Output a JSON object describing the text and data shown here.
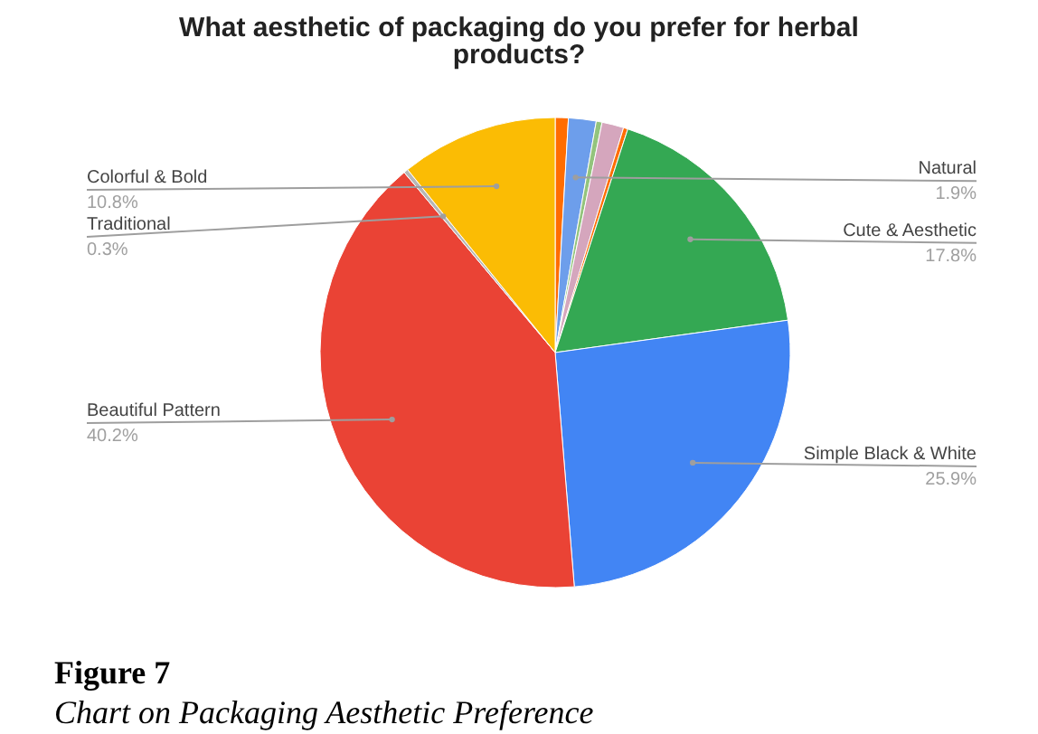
{
  "chart_data": {
    "type": "pie",
    "title": [
      "What aesthetic of packaging do you prefer for herbal",
      "products?"
    ],
    "categories": [
      null,
      "Natural",
      null,
      null,
      null,
      "Cute & Aesthetic",
      "Simple Black & White",
      "Beautiful Pattern",
      "Traditional",
      "Colorful & Bold"
    ],
    "values": [
      0.9,
      1.9,
      0.4,
      1.5,
      0.3,
      17.8,
      25.9,
      40.2,
      0.3,
      10.8
    ],
    "value_labels": [
      null,
      "1.9%",
      null,
      null,
      null,
      "17.8%",
      "25.9%",
      "40.2%",
      "0.3%",
      "10.8%"
    ],
    "colors": [
      "#ff6d01",
      "#6d9eeb",
      "#93c47d",
      "#d5a6bd",
      "#ff6d01",
      "#34a853",
      "#4285f4",
      "#ea4335",
      "#b7b7b7",
      "#fbbc04"
    ],
    "annotations": [
      "Figure 7",
      "Chart on Packaging Aesthetic Preference"
    ]
  }
}
